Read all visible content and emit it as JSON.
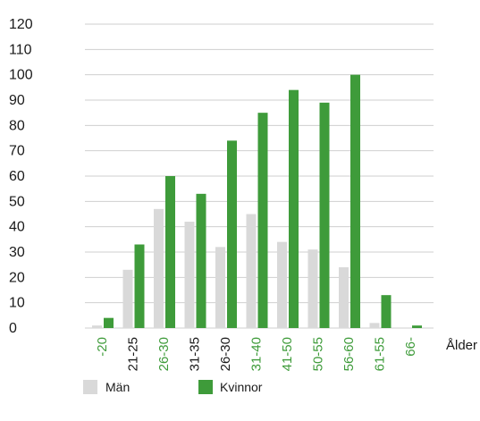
{
  "chart_data": {
    "type": "bar",
    "xlabel": "Ålder",
    "ylabel": "",
    "ylim": [
      0,
      120
    ],
    "yticks": [
      0,
      10,
      20,
      30,
      40,
      50,
      60,
      70,
      80,
      90,
      100,
      110,
      120
    ],
    "grid": true,
    "legend_position": "bottom-left",
    "categories": [
      "-20",
      "21-25",
      "26-30",
      "31-35",
      "26-30",
      "31-40",
      "41-50",
      "50-55",
      "56-60",
      "61-55",
      "66-"
    ],
    "series": [
      {
        "name": "Män",
        "color": "#d9d9d9",
        "values": [
          1,
          23,
          47,
          42,
          32,
          45,
          34,
          31,
          24,
          2,
          0
        ]
      },
      {
        "name": "Kvinnor",
        "color": "#3e9b3a",
        "values": [
          4,
          33,
          60,
          53,
          74,
          85,
          94,
          89,
          100,
          13,
          1
        ]
      }
    ],
    "colors": {
      "tick_green": "#3e9b3a",
      "tick_dark": "#1a1a1a",
      "grid": "#cfcfcf"
    }
  }
}
